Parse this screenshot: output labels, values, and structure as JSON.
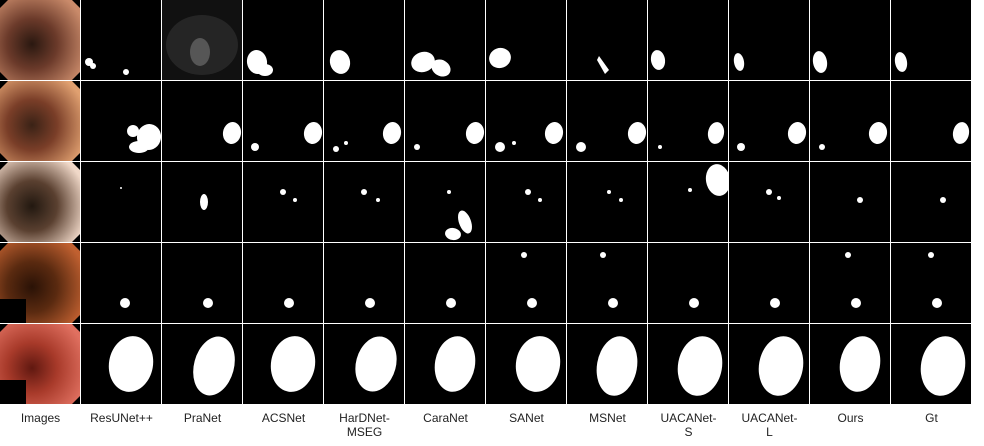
{
  "columns": [
    {
      "label": "Images"
    },
    {
      "label": "ResUNet++"
    },
    {
      "label": "PraNet"
    },
    {
      "label": "ACSNet"
    },
    {
      "label": "HarDNet-\nMSEG"
    },
    {
      "label": "CaraNet"
    },
    {
      "label": "SANet"
    },
    {
      "label": "MSNet"
    },
    {
      "label": "UACANet-\nS"
    },
    {
      "label": "UACANet-\nL"
    },
    {
      "label": "Ours"
    },
    {
      "label": "Gt"
    }
  ],
  "rows": 5,
  "colors": {
    "background": "#000000",
    "mask": "#ffffff",
    "separator": "#ffffff",
    "label": "#222222"
  }
}
